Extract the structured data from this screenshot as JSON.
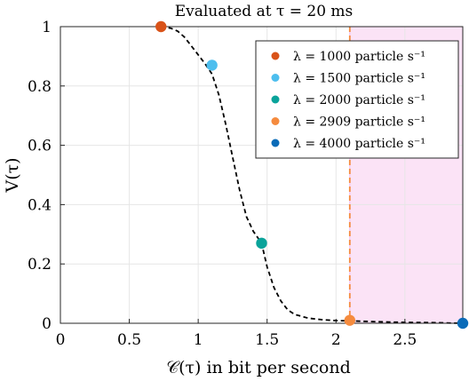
{
  "chart_data": {
    "type": "scatter",
    "title": "Evaluated at τ = 20 ms",
    "xlabel": "𝒞(τ) in bit per second",
    "ylabel": "V(τ)",
    "xlim": [
      0,
      2.92
    ],
    "ylim": [
      0,
      1
    ],
    "x_ticks": [
      "0",
      "0.5",
      "1",
      "1.5",
      "2",
      "2.5"
    ],
    "y_ticks": [
      "0",
      "0.2",
      "0.4",
      "0.6",
      "0.8",
      "1"
    ],
    "x_tick_values": [
      0,
      0.5,
      1,
      1.5,
      2,
      2.5
    ],
    "y_tick_values": [
      0,
      0.2,
      0.4,
      0.6,
      0.8,
      1
    ],
    "grid": true,
    "legend_position": "top-right",
    "series": [
      {
        "name": "λ = 1000 particle s⁻¹",
        "color": "#d95319",
        "x": [
          0.73
        ],
        "y": [
          1.0
        ]
      },
      {
        "name": "λ = 1500 particle s⁻¹",
        "color": "#4dbeee",
        "x": [
          1.1
        ],
        "y": [
          0.87
        ]
      },
      {
        "name": "λ = 2000 particle s⁻¹",
        "color": "#0aa39a",
        "x": [
          1.46
        ],
        "y": [
          0.27
        ]
      },
      {
        "name": "λ = 2909 particle s⁻¹",
        "color": "#f58b3e",
        "x": [
          2.1
        ],
        "y": [
          0.01
        ]
      },
      {
        "name": "λ = 4000 particle s⁻¹",
        "color": "#0a6bb8",
        "x": [
          2.92
        ],
        "y": [
          0.0
        ]
      }
    ],
    "curve": {
      "style": "dashed",
      "color": "#000000",
      "x": [
        0.73,
        0.8,
        0.85,
        0.9,
        0.95,
        1.0,
        1.05,
        1.1,
        1.15,
        1.2,
        1.25,
        1.3,
        1.35,
        1.4,
        1.46,
        1.5,
        1.55,
        1.6,
        1.65,
        1.7,
        1.8,
        1.9,
        2.0,
        2.1,
        2.3,
        2.5,
        2.7,
        2.92
      ],
      "y": [
        1.0,
        0.995,
        0.985,
        0.965,
        0.935,
        0.905,
        0.875,
        0.84,
        0.77,
        0.67,
        0.56,
        0.45,
        0.36,
        0.31,
        0.27,
        0.19,
        0.12,
        0.075,
        0.045,
        0.03,
        0.017,
        0.012,
        0.009,
        0.008,
        0.005,
        0.003,
        0.002,
        0.0
      ]
    },
    "threshold": {
      "x": 2.1,
      "color": "#f58b3e",
      "style": "dashed"
    },
    "shaded_region": {
      "x": [
        2.1,
        2.92
      ],
      "color": "#fbe3f6",
      "edge_color": "#f3b6ea"
    }
  }
}
